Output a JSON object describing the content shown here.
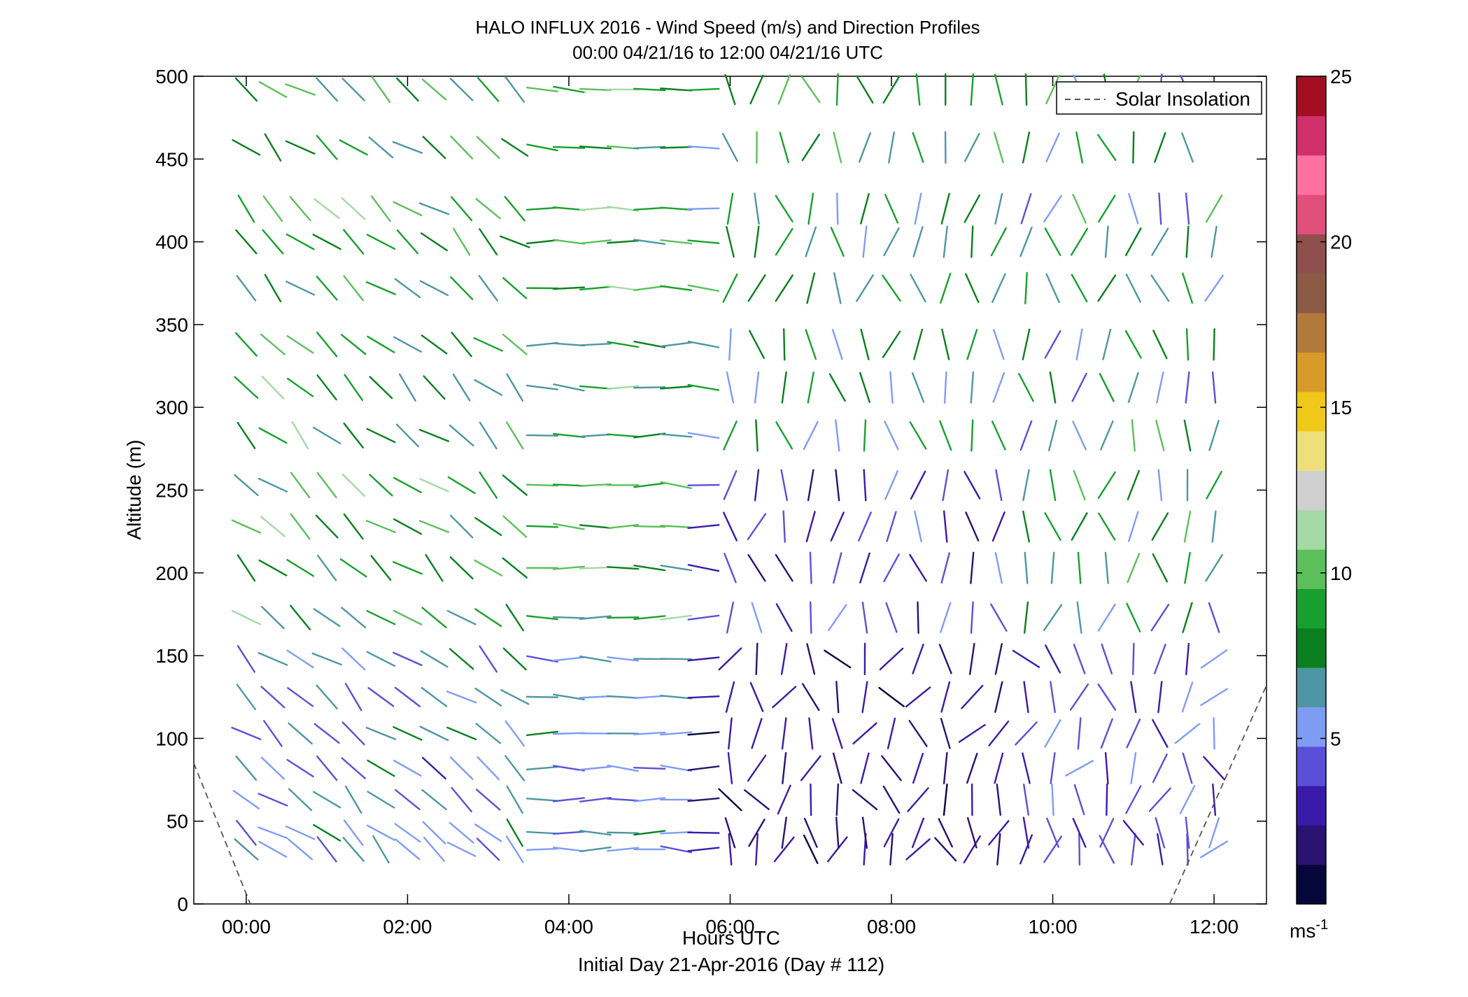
{
  "chart_data": {
    "type": "scatter",
    "title": "HALO INFLUX 2016 - Wind Speed (m/s) and Direction Profiles",
    "subtitle": "00:00 04/21/16 to 12:00 04/21/16  UTC",
    "xlabel": "Hours UTC",
    "footer": "Initial Day 21-Apr-2016 (Day # 112)",
    "ylabel": "Altitude (m)",
    "xlim": [
      -0.65,
      12.65
    ],
    "ylim": [
      0,
      500
    ],
    "x_ticks": [
      0,
      2,
      4,
      6,
      8,
      10,
      12
    ],
    "x_tick_labels": [
      "00:00",
      "02:00",
      "04:00",
      "06:00",
      "08:00",
      "10:00",
      "12:00"
    ],
    "y_ticks": [
      0,
      50,
      100,
      150,
      200,
      250,
      300,
      350,
      400,
      450,
      500
    ],
    "y_tick_labels": [
      "0",
      "50",
      "100",
      "150",
      "200",
      "250",
      "300",
      "350",
      "400",
      "450",
      "500"
    ],
    "legend": {
      "placement": "top-right",
      "entries": [
        "Solar Insolation"
      ]
    },
    "colorbar": {
      "clim": [
        0,
        25
      ],
      "ticks": [
        5,
        10,
        15,
        20,
        25
      ],
      "tick_labels": [
        "5",
        "10",
        "15",
        "20",
        "25"
      ],
      "unit_label": "ms",
      "unit_exponent": "-1",
      "colors": [
        "#05073a",
        "#2a1270",
        "#3a1aa8",
        "#5a50d8",
        "#7f9cf5",
        "#4e96a3",
        "#0a7f1f",
        "#17a02e",
        "#5cbf5c",
        "#a5d9a5",
        "#cfcfcf",
        "#ede07a",
        "#f0c81a",
        "#d89a28",
        "#b27a3a",
        "#8a5a45",
        "#8f4f4c",
        "#e0507a",
        "#ff6fa0",
        "#d0306a",
        "#a30f20"
      ]
    },
    "solar_insolation": {
      "style": "dashed",
      "color": "#555555",
      "segments": [
        [
          [
            -0.65,
            85
          ],
          [
            0.05,
            0
          ]
        ],
        [
          [
            11.45,
            0
          ],
          [
            12.65,
            132
          ]
        ]
      ]
    },
    "wind_barbs": {
      "hours": [
        0.0,
        0.33,
        0.67,
        1.0,
        1.33,
        1.67,
        2.0,
        2.33,
        2.67,
        3.0,
        3.33,
        3.67,
        4.0,
        4.33,
        4.67,
        5.0,
        5.33,
        5.67,
        6.0,
        6.33,
        6.67,
        7.0,
        7.33,
        7.67,
        8.0,
        8.33,
        8.67,
        9.0,
        9.33,
        9.67,
        10.0,
        10.33,
        10.67,
        11.0,
        11.33,
        11.67,
        12.0
      ],
      "altitudes": [
        33,
        43,
        63,
        82,
        103,
        125,
        148,
        173,
        203,
        228,
        253,
        283,
        312,
        338,
        372,
        400,
        420,
        457,
        492
      ],
      "note": "Arrows are wind direction and speed at each hour/altitude; directions vary smoothly from NW/W near 00:00 toward N by midday, with light winds (blue/purple) below 150 m after 06:00 and stronger green winds aloft."
    }
  }
}
